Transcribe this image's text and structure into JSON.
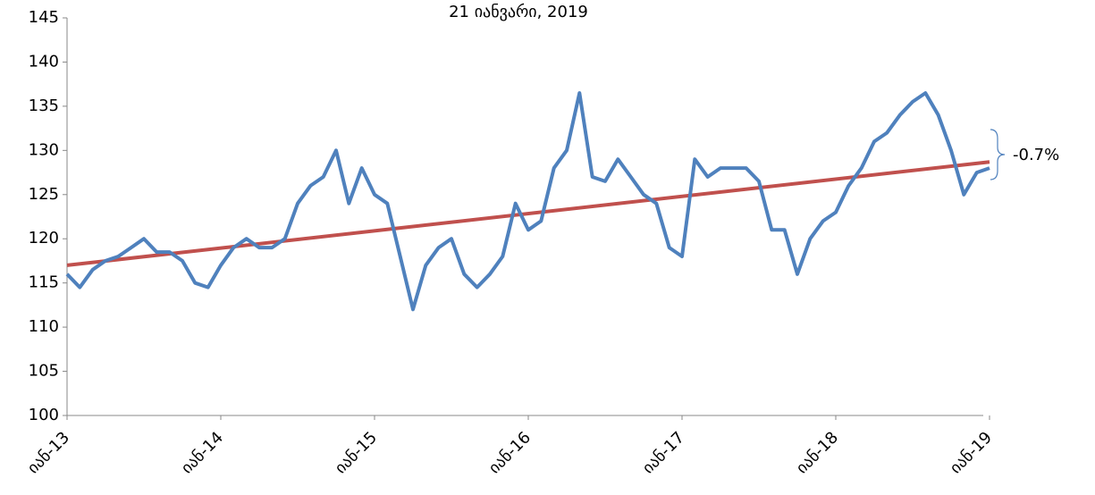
{
  "chart_data": {
    "type": "line",
    "title": "21 იანვარი, 2019",
    "x": [
      "2013-01",
      "2013-02",
      "2013-03",
      "2013-04",
      "2013-05",
      "2013-06",
      "2013-07",
      "2013-08",
      "2013-09",
      "2013-10",
      "2013-11",
      "2013-12",
      "2014-01",
      "2014-02",
      "2014-03",
      "2014-04",
      "2014-05",
      "2014-06",
      "2014-07",
      "2014-08",
      "2014-09",
      "2014-10",
      "2014-11",
      "2014-12",
      "2015-01",
      "2015-02",
      "2015-03",
      "2015-04",
      "2015-05",
      "2015-06",
      "2015-07",
      "2015-08",
      "2015-09",
      "2015-10",
      "2015-11",
      "2015-12",
      "2016-01",
      "2016-02",
      "2016-03",
      "2016-04",
      "2016-05",
      "2016-06",
      "2016-07",
      "2016-08",
      "2016-09",
      "2016-10",
      "2016-11",
      "2016-12",
      "2017-01",
      "2017-02",
      "2017-03",
      "2017-04",
      "2017-05",
      "2017-06",
      "2017-07",
      "2017-08",
      "2017-09",
      "2017-10",
      "2017-11",
      "2017-12",
      "2018-01",
      "2018-02",
      "2018-03",
      "2018-04",
      "2018-05",
      "2018-06",
      "2018-07",
      "2018-08",
      "2018-09",
      "2018-10",
      "2018-11",
      "2018-12",
      "2019-01"
    ],
    "series": [
      {
        "color": "#4f81bd",
        "values": [
          116,
          114.5,
          116.5,
          117.5,
          118,
          119,
          120,
          118.5,
          118.5,
          117.5,
          115,
          114.5,
          117,
          119,
          120,
          119,
          119,
          120,
          124,
          126,
          127,
          130,
          124,
          128,
          125,
          124,
          118,
          112,
          117,
          119,
          120,
          116,
          114.5,
          116,
          118,
          124,
          121,
          122,
          128,
          130,
          136.5,
          127,
          126.5,
          129,
          127,
          125,
          124,
          119,
          118,
          129,
          127,
          128,
          128,
          128,
          126.5,
          121,
          121,
          116,
          120,
          122,
          123,
          126,
          128,
          131,
          132,
          134,
          135.5,
          136.5,
          134,
          130,
          125,
          127.5,
          128
        ]
      }
    ],
    "trend_line": {
      "x": [
        "2013-01",
        "2019-01"
      ],
      "values": [
        117,
        128.7
      ],
      "color": "#c0504d"
    },
    "annotation": "-0.7%",
    "xlim": [
      "2013-01",
      "2019-01"
    ],
    "xticks": [
      {
        "value": "2013-01",
        "label": "იან-13"
      },
      {
        "value": "2014-01",
        "label": "იან-14"
      },
      {
        "value": "2015-01",
        "label": "იან-15"
      },
      {
        "value": "2016-01",
        "label": "იან-16"
      },
      {
        "value": "2017-01",
        "label": "იან-17"
      },
      {
        "value": "2018-01",
        "label": "იან-18"
      },
      {
        "value": "2019-01",
        "label": "იან-19"
      }
    ],
    "ylim": [
      100,
      145
    ],
    "yticks": [
      100,
      105,
      110,
      115,
      120,
      125,
      130,
      135,
      140,
      145
    ],
    "grid": false
  }
}
